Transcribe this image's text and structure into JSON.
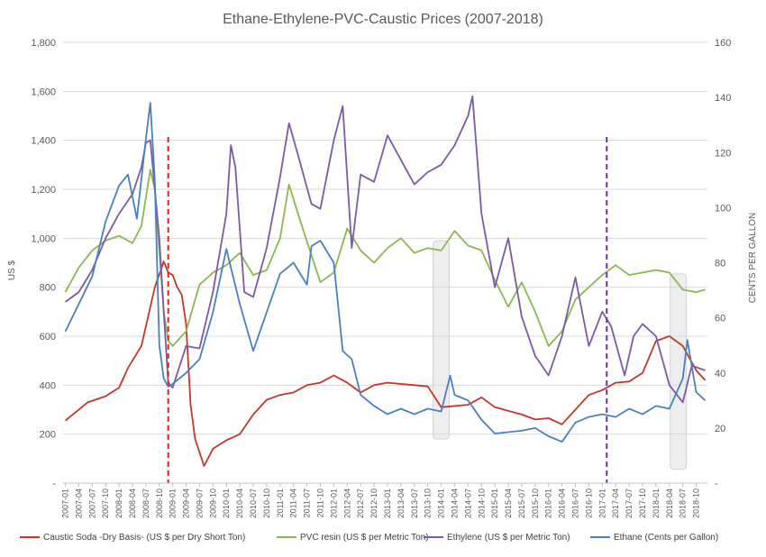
{
  "chart_data": {
    "type": "line",
    "title": "Ethane-Ethylene-PVC-Caustic  Prices  (2007-2018)",
    "ylabel": "US $",
    "y2label": "CENTS PER GALLON",
    "ylim": [
      0,
      1800
    ],
    "y2lim": [
      0,
      160
    ],
    "y_ticks": [
      "-",
      "200",
      "400",
      "600",
      "800",
      "1,000",
      "1,200",
      "1,400",
      "1,600",
      "1,800"
    ],
    "y2_ticks": [
      "-",
      "20",
      "40",
      "60",
      "80",
      "100",
      "120",
      "140",
      "160"
    ],
    "grid": "horizontal",
    "legend_position": "bottom",
    "x_tick_labels": [
      "2007-01",
      "2007-04",
      "2007-07",
      "2007-10",
      "2008-01",
      "2008-04",
      "2008-07",
      "2008-10",
      "2009-01",
      "2009-04",
      "2009-07",
      "2009-10",
      "2010-01",
      "2010-04",
      "2010-07",
      "2010-10",
      "2011-01",
      "2011-04",
      "2011-07",
      "2011-10",
      "2012-01",
      "2012-04",
      "2012-07",
      "2012-10",
      "2013-01",
      "2013-04",
      "2013-07",
      "2013-10",
      "2014-01",
      "2014-04",
      "2014-07",
      "2014-10",
      "2015-01",
      "2015-04",
      "2015-07",
      "2015-10",
      "2016-01",
      "2016-04",
      "2016-07",
      "2016-10",
      "2017-01",
      "2017-04",
      "2017-07",
      "2017-10",
      "2018-01",
      "2018-04",
      "2018-07",
      "2018-10"
    ],
    "x_first": "2007-01",
    "x_last": "2018-12",
    "series": [
      {
        "name": "Caustic Soda -Dry Basis- (US $ per Dry Short Ton)",
        "color": "#c0392b",
        "axis": "left",
        "points": [
          [
            "2007-01",
            255
          ],
          [
            "2007-06",
            330
          ],
          [
            "2007-10",
            355
          ],
          [
            "2008-01",
            390
          ],
          [
            "2008-03",
            470
          ],
          [
            "2008-06",
            560
          ],
          [
            "2008-09",
            800
          ],
          [
            "2008-11",
            905
          ],
          [
            "2008-12",
            860
          ],
          [
            "2009-01",
            850
          ],
          [
            "2009-02",
            800
          ],
          [
            "2009-03",
            770
          ],
          [
            "2009-04",
            650
          ],
          [
            "2009-05",
            320
          ],
          [
            "2009-06",
            180
          ],
          [
            "2009-08",
            70
          ],
          [
            "2009-10",
            140
          ],
          [
            "2010-01",
            175
          ],
          [
            "2010-04",
            200
          ],
          [
            "2010-07",
            280
          ],
          [
            "2010-10",
            340
          ],
          [
            "2011-01",
            360
          ],
          [
            "2011-04",
            370
          ],
          [
            "2011-07",
            400
          ],
          [
            "2011-10",
            410
          ],
          [
            "2012-01",
            440
          ],
          [
            "2012-04",
            410
          ],
          [
            "2012-07",
            370
          ],
          [
            "2012-10",
            400
          ],
          [
            "2013-01",
            410
          ],
          [
            "2013-07",
            400
          ],
          [
            "2013-10",
            395
          ],
          [
            "2014-01",
            310
          ],
          [
            "2014-07",
            320
          ],
          [
            "2014-10",
            350
          ],
          [
            "2015-01",
            310
          ],
          [
            "2015-07",
            280
          ],
          [
            "2015-10",
            260
          ],
          [
            "2016-01",
            265
          ],
          [
            "2016-04",
            240
          ],
          [
            "2016-07",
            300
          ],
          [
            "2016-10",
            360
          ],
          [
            "2017-01",
            380
          ],
          [
            "2017-04",
            410
          ],
          [
            "2017-07",
            415
          ],
          [
            "2017-10",
            450
          ],
          [
            "2018-01",
            580
          ],
          [
            "2018-04",
            600
          ],
          [
            "2018-07",
            560
          ],
          [
            "2018-10",
            460
          ],
          [
            "2018-12",
            420
          ]
        ]
      },
      {
        "name": "PVC resin (US $ per Metric Ton)",
        "color": "#8db750",
        "axis": "left",
        "points": [
          [
            "2007-01",
            780
          ],
          [
            "2007-04",
            880
          ],
          [
            "2007-07",
            950
          ],
          [
            "2007-10",
            990
          ],
          [
            "2008-01",
            1010
          ],
          [
            "2008-04",
            980
          ],
          [
            "2008-06",
            1050
          ],
          [
            "2008-08",
            1280
          ],
          [
            "2008-09",
            1200
          ],
          [
            "2008-11",
            700
          ],
          [
            "2008-12",
            580
          ],
          [
            "2009-01",
            560
          ],
          [
            "2009-04",
            620
          ],
          [
            "2009-07",
            810
          ],
          [
            "2009-10",
            860
          ],
          [
            "2010-01",
            890
          ],
          [
            "2010-04",
            940
          ],
          [
            "2010-07",
            850
          ],
          [
            "2010-10",
            870
          ],
          [
            "2011-01",
            1000
          ],
          [
            "2011-03",
            1220
          ],
          [
            "2011-05",
            1100
          ],
          [
            "2011-08",
            930
          ],
          [
            "2011-10",
            820
          ],
          [
            "2012-01",
            860
          ],
          [
            "2012-04",
            1040
          ],
          [
            "2012-07",
            950
          ],
          [
            "2012-10",
            900
          ],
          [
            "2013-01",
            960
          ],
          [
            "2013-04",
            1000
          ],
          [
            "2013-07",
            940
          ],
          [
            "2013-10",
            960
          ],
          [
            "2014-01",
            950
          ],
          [
            "2014-04",
            1030
          ],
          [
            "2014-07",
            970
          ],
          [
            "2014-10",
            950
          ],
          [
            "2015-01",
            830
          ],
          [
            "2015-04",
            720
          ],
          [
            "2015-07",
            820
          ],
          [
            "2015-10",
            700
          ],
          [
            "2016-01",
            560
          ],
          [
            "2016-04",
            620
          ],
          [
            "2016-07",
            750
          ],
          [
            "2016-10",
            800
          ],
          [
            "2017-01",
            850
          ],
          [
            "2017-04",
            890
          ],
          [
            "2017-07",
            850
          ],
          [
            "2017-10",
            860
          ],
          [
            "2018-01",
            870
          ],
          [
            "2018-04",
            860
          ],
          [
            "2018-07",
            790
          ],
          [
            "2018-10",
            780
          ],
          [
            "2018-12",
            790
          ]
        ]
      },
      {
        "name": "Ethylene (US $ per Metric Ton)",
        "color": "#7c5aa6",
        "axis": "left",
        "points": [
          [
            "2007-01",
            740
          ],
          [
            "2007-04",
            780
          ],
          [
            "2007-07",
            870
          ],
          [
            "2007-10",
            1000
          ],
          [
            "2008-01",
            1100
          ],
          [
            "2008-04",
            1180
          ],
          [
            "2008-06",
            1290
          ],
          [
            "2008-07",
            1390
          ],
          [
            "2008-08",
            1400
          ],
          [
            "2008-10",
            1000
          ],
          [
            "2008-11",
            700
          ],
          [
            "2008-12",
            410
          ],
          [
            "2009-01",
            390
          ],
          [
            "2009-04",
            560
          ],
          [
            "2009-07",
            550
          ],
          [
            "2009-10",
            780
          ],
          [
            "2010-01",
            1100
          ],
          [
            "2010-02",
            1380
          ],
          [
            "2010-03",
            1290
          ],
          [
            "2010-05",
            780
          ],
          [
            "2010-07",
            760
          ],
          [
            "2010-10",
            960
          ],
          [
            "2011-01",
            1250
          ],
          [
            "2011-03",
            1470
          ],
          [
            "2011-05",
            1340
          ],
          [
            "2011-08",
            1140
          ],
          [
            "2011-10",
            1120
          ],
          [
            "2012-01",
            1400
          ],
          [
            "2012-03",
            1540
          ],
          [
            "2012-05",
            960
          ],
          [
            "2012-07",
            1260
          ],
          [
            "2012-10",
            1230
          ],
          [
            "2013-01",
            1420
          ],
          [
            "2013-04",
            1320
          ],
          [
            "2013-07",
            1220
          ],
          [
            "2013-10",
            1270
          ],
          [
            "2014-01",
            1300
          ],
          [
            "2014-04",
            1380
          ],
          [
            "2014-07",
            1500
          ],
          [
            "2014-08",
            1580
          ],
          [
            "2014-10",
            1100
          ],
          [
            "2015-01",
            800
          ],
          [
            "2015-04",
            1000
          ],
          [
            "2015-07",
            680
          ],
          [
            "2015-10",
            520
          ],
          [
            "2016-01",
            440
          ],
          [
            "2016-04",
            600
          ],
          [
            "2016-07",
            840
          ],
          [
            "2016-10",
            560
          ],
          [
            "2017-01",
            700
          ],
          [
            "2017-03",
            640
          ],
          [
            "2017-06",
            440
          ],
          [
            "2017-08",
            600
          ],
          [
            "2017-10",
            650
          ],
          [
            "2018-01",
            600
          ],
          [
            "2018-04",
            400
          ],
          [
            "2018-07",
            330
          ],
          [
            "2018-09",
            480
          ],
          [
            "2018-12",
            460
          ]
        ]
      },
      {
        "name": "Ethane (Cents per Gallon)",
        "color": "#4a80c0",
        "axis": "right",
        "points": [
          [
            "2007-01",
            55
          ],
          [
            "2007-04",
            65
          ],
          [
            "2007-07",
            75
          ],
          [
            "2007-10",
            95
          ],
          [
            "2008-01",
            108
          ],
          [
            "2008-03",
            112
          ],
          [
            "2008-05",
            96
          ],
          [
            "2008-07",
            125
          ],
          [
            "2008-08",
            138
          ],
          [
            "2008-09",
            110
          ],
          [
            "2008-10",
            50
          ],
          [
            "2008-11",
            38
          ],
          [
            "2008-12",
            35
          ],
          [
            "2009-01",
            36
          ],
          [
            "2009-04",
            40
          ],
          [
            "2009-07",
            45
          ],
          [
            "2009-10",
            62
          ],
          [
            "2010-01",
            85
          ],
          [
            "2010-04",
            65
          ],
          [
            "2010-07",
            48
          ],
          [
            "2010-10",
            62
          ],
          [
            "2011-01",
            76
          ],
          [
            "2011-04",
            80
          ],
          [
            "2011-07",
            72
          ],
          [
            "2011-08",
            86
          ],
          [
            "2011-10",
            88
          ],
          [
            "2012-01",
            80
          ],
          [
            "2012-03",
            48
          ],
          [
            "2012-05",
            45
          ],
          [
            "2012-07",
            32
          ],
          [
            "2012-10",
            28
          ],
          [
            "2013-01",
            25
          ],
          [
            "2013-04",
            27
          ],
          [
            "2013-07",
            25
          ],
          [
            "2013-10",
            27
          ],
          [
            "2014-01",
            26
          ],
          [
            "2014-03",
            39
          ],
          [
            "2014-04",
            32
          ],
          [
            "2014-07",
            30
          ],
          [
            "2014-10",
            23
          ],
          [
            "2015-01",
            18
          ],
          [
            "2015-07",
            19
          ],
          [
            "2015-10",
            20
          ],
          [
            "2016-01",
            17
          ],
          [
            "2016-04",
            15
          ],
          [
            "2016-07",
            22
          ],
          [
            "2016-10",
            24
          ],
          [
            "2017-01",
            25
          ],
          [
            "2017-04",
            24
          ],
          [
            "2017-07",
            27
          ],
          [
            "2017-10",
            25
          ],
          [
            "2018-01",
            28
          ],
          [
            "2018-04",
            27
          ],
          [
            "2018-07",
            38
          ],
          [
            "2018-08",
            52
          ],
          [
            "2018-10",
            33
          ],
          [
            "2018-12",
            30
          ]
        ]
      }
    ],
    "vertical_markers": [
      {
        "x": "2008-12",
        "color": "#e02020"
      },
      {
        "x": "2017-02",
        "color": "#7030a0"
      }
    ],
    "shaded_regions": [
      {
        "x": "2014-01",
        "y2_from": 16,
        "y2_to": 88
      },
      {
        "x": "2018-06",
        "y2_from": 5,
        "y2_to": 76
      }
    ]
  }
}
